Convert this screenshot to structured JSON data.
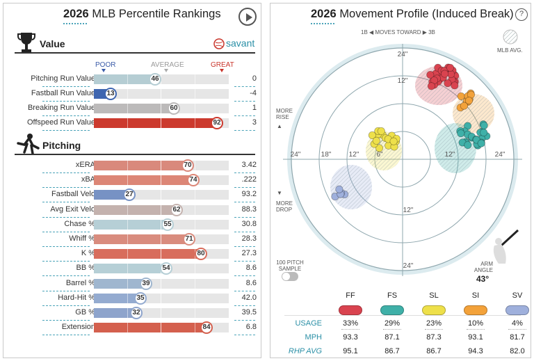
{
  "left": {
    "title_year": "2026",
    "title_rest": "MLB Percentile Rankings",
    "value_section": "Value",
    "pitching_section": "Pitching",
    "savant_label": "savant",
    "scale": {
      "poor": "POOR",
      "average": "AVERAGE",
      "great": "GREAT"
    },
    "colors": {
      "poor": "#3a5ba8",
      "great": "#c9352b"
    },
    "value_rows": [
      {
        "label": "Pitching Run Value",
        "pct": 46,
        "value": "0",
        "color": "#b5cdd3"
      },
      {
        "label": "Fastball Run Value",
        "pct": 13,
        "value": "-4",
        "color": "#3f66b0"
      },
      {
        "label": "Breaking Run Value",
        "pct": 60,
        "value": "1",
        "color": "#bcbaba"
      },
      {
        "label": "Offspeed Run Value",
        "pct": 92,
        "value": "3",
        "color": "#cc3a2e"
      }
    ],
    "pitching_rows": [
      {
        "label": "xERA",
        "pct": 70,
        "value": "3.42",
        "color": "#d9897c"
      },
      {
        "label": "xBA",
        "pct": 74,
        "value": ".222",
        "color": "#dc8676"
      },
      {
        "label": "Fastball Velo",
        "pct": 27,
        "value": "93.2",
        "color": "#7792c4"
      },
      {
        "label": "Avg Exit Velo",
        "pct": 62,
        "value": "88.3",
        "color": "#c4b2ae"
      },
      {
        "label": "Chase %",
        "pct": 55,
        "value": "30.8",
        "color": "#b6cfd6"
      },
      {
        "label": "Whiff %",
        "pct": 71,
        "value": "28.3",
        "color": "#d98c7e"
      },
      {
        "label": "K %",
        "pct": 80,
        "value": "27.3",
        "color": "#d86d5c"
      },
      {
        "label": "BB %",
        "pct": 54,
        "value": "8.6",
        "color": "#b6cfd6"
      },
      {
        "label": "Barrel %",
        "pct": 39,
        "value": "8.6",
        "color": "#9fb6cf"
      },
      {
        "label": "Hard-Hit %",
        "pct": 35,
        "value": "42.0",
        "color": "#94abd0"
      },
      {
        "label": "GB %",
        "pct": 32,
        "value": "39.5",
        "color": "#8ea4cc"
      },
      {
        "label": "Extension",
        "pct": 84,
        "value": "6.8",
        "color": "#d4604e"
      }
    ]
  },
  "right": {
    "title_year": "2026",
    "title_rest": "Movement Profile (Induced Break)",
    "help": "?",
    "top_label": "1B ◀ MOVES TOWARD ▶ 3B",
    "mlb_avg": "MLB AVG.",
    "more_rise": "MORE RISE",
    "more_drop": "MORE DROP",
    "sample": "100 PITCH SAMPLE",
    "arm_angle_label": "ARM ANGLE",
    "arm_angle": "43°",
    "ring_labels": [
      "24\"",
      "12\"",
      "6\"",
      "12\"",
      "24\"",
      "18\"",
      "12\"",
      "24\"",
      "12\"",
      "24\""
    ],
    "row_labels": {
      "usage": "USAGE",
      "mph": "MPH",
      "rhp": "RHP AVG"
    },
    "pitches": [
      {
        "code": "FF",
        "color": "#d9434f",
        "usage": "33%",
        "mph": "93.3",
        "rhp": "95.1"
      },
      {
        "code": "FS",
        "color": "#3fb0a8",
        "usage": "29%",
        "mph": "87.1",
        "rhp": "86.7"
      },
      {
        "code": "SL",
        "color": "#eee04a",
        "usage": "23%",
        "mph": "87.3",
        "rhp": "86.7"
      },
      {
        "code": "SI",
        "color": "#f3a23a",
        "usage": "10%",
        "mph": "93.1",
        "rhp": "94.3"
      },
      {
        "code": "SV",
        "color": "#9fb0dc",
        "usage": "4%",
        "mph": "81.7",
        "rhp": "82.0"
      }
    ]
  }
}
